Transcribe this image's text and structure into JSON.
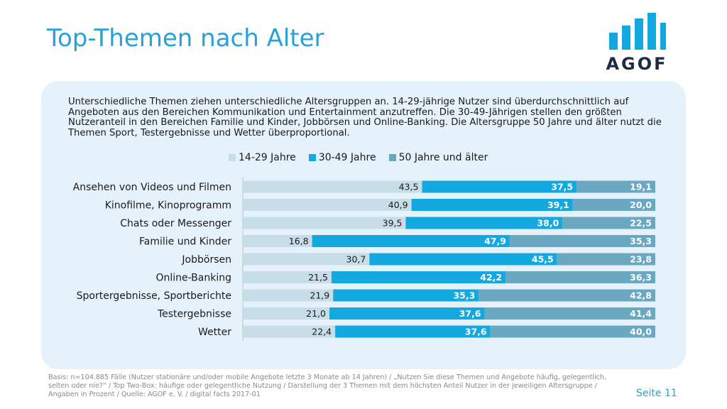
{
  "title": "Top-Themen nach Alter",
  "logo": {
    "text": "AGOF"
  },
  "intro_text": "Unterschiedliche Themen ziehen unterschiedliche Altersgruppen an. 14-29-jährige Nutzer sind überdurchschnittlich auf Angeboten aus den Bereichen Kommunikation und Entertainment anzutreffen. Die 30-49-Jährigen stellen den größten Nutzeranteil in den Bereichen Familie und Kinder, Jobbörsen und Online-Banking. Die Altersgruppe 50 Jahre und älter nutzt die Themen Sport, Testergebnisse und Wetter überproportional.",
  "chart_data": {
    "type": "bar",
    "orientation": "horizontal",
    "stacked": true,
    "legend_position": "top",
    "grid": false,
    "xlim": [
      0,
      100
    ],
    "categories": [
      "Ansehen von Videos und Filmen",
      "Kinofilme, Kinoprogramm",
      "Chats oder Messenger",
      "Familie und Kinder",
      "Jobbörsen",
      "Online-Banking",
      "Sportergebnisse, Sportberichte",
      "Testergebnisse",
      "Wetter"
    ],
    "series": [
      {
        "name": "14-29 Jahre",
        "color": "#c7dde7",
        "label_color": "#1a1a1a",
        "bold": false,
        "values": [
          43.5,
          40.9,
          39.5,
          16.8,
          30.7,
          21.5,
          21.9,
          21.0,
          22.4
        ],
        "labels": [
          "43,5",
          "40,9",
          "39,5",
          "16,8",
          "30,7",
          "21,5",
          "21,9",
          "21,0",
          "22,4"
        ]
      },
      {
        "name": "30-49 Jahre",
        "color": "#14a8e0",
        "label_color": "#ffffff",
        "bold": true,
        "values": [
          37.5,
          39.1,
          38.0,
          47.9,
          45.5,
          42.2,
          35.3,
          37.6,
          37.6
        ],
        "labels": [
          "37,5",
          "39,1",
          "38,0",
          "47,9",
          "45,5",
          "42,2",
          "35,3",
          "37,6",
          "37,6"
        ]
      },
      {
        "name": "50 Jahre und älter",
        "color": "#6aa8c2",
        "label_color": "#ffffff",
        "bold": true,
        "values": [
          19.1,
          20.0,
          22.5,
          35.3,
          23.8,
          36.3,
          42.8,
          41.4,
          40.0
        ],
        "labels": [
          "19,1",
          "20,0",
          "22,5",
          "35,3",
          "23,8",
          "36,3",
          "42,8",
          "41,4",
          "40,0"
        ]
      }
    ]
  },
  "footer": "Basis: n=104.885 Fälle (Nutzer stationäre und/oder mobile Angebote letzte 3 Monate ab 14 Jahren) / „Nutzen Sie diese Themen und Angebote häufig, gelegentlich, selten oder nie?“ / Top Two-Box: häufige oder gelegentliche Nutzung / Darstellung der 3 Themen mit dem höchsten Anteil Nutzer in der jeweiligen Altersgruppe / Angaben in Prozent / Quelle: AGOF e. V. / digital facts 2017-01",
  "page_label": "Seite 11"
}
